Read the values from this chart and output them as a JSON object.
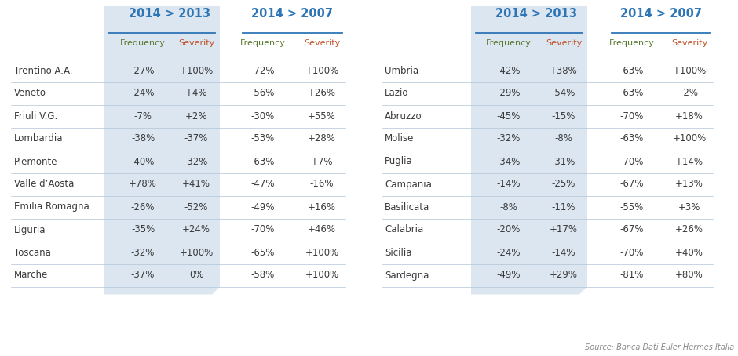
{
  "left_regions": [
    "Trentino A.A.",
    "Veneto",
    "Friuli V.G.",
    "Lombardia",
    "Piemonte",
    "Valle d’Aosta",
    "Emilia Romagna",
    "Liguria",
    "Toscana",
    "Marche"
  ],
  "left_2013_freq": [
    "-27%",
    "-24%",
    "-7%",
    "-38%",
    "-40%",
    "+78%",
    "-26%",
    "-35%",
    "-32%",
    "-37%"
  ],
  "left_2013_sev": [
    "+100%",
    "+4%",
    "+2%",
    "-37%",
    "-32%",
    "+41%",
    "-52%",
    "+24%",
    "+100%",
    "0%"
  ],
  "left_2007_freq": [
    "-72%",
    "-56%",
    "-30%",
    "-53%",
    "-63%",
    "-47%",
    "-49%",
    "-70%",
    "-65%",
    "-58%"
  ],
  "left_2007_sev": [
    "+100%",
    "+26%",
    "+55%",
    "+28%",
    "+7%",
    "-16%",
    "+16%",
    "+46%",
    "+100%",
    "+100%"
  ],
  "right_regions": [
    "Umbria",
    "Lazio",
    "Abruzzo",
    "Molise",
    "Puglia",
    "Campania",
    "Basilicata",
    "Calabria",
    "Sicilia",
    "Sardegna"
  ],
  "right_2013_freq": [
    "-42%",
    "-29%",
    "-45%",
    "-32%",
    "-34%",
    "-14%",
    "-8%",
    "-20%",
    "-24%",
    "-49%"
  ],
  "right_2013_sev": [
    "+38%",
    "-54%",
    "-15%",
    "-8%",
    "-31%",
    "-25%",
    "-11%",
    "+17%",
    "-14%",
    "+29%"
  ],
  "right_2007_freq": [
    "-63%",
    "-63%",
    "-70%",
    "-63%",
    "-70%",
    "-67%",
    "-55%",
    "-67%",
    "-70%",
    "-81%"
  ],
  "right_2007_sev": [
    "+100%",
    "-2%",
    "+18%",
    "+100%",
    "+14%",
    "+13%",
    "+3%",
    "+26%",
    "+40%",
    "+80%"
  ],
  "bg_color": "#ffffff",
  "shaded_color": "#dce6f1",
  "header_blue": "#2e75b6",
  "freq_color": "#5a7a2e",
  "sev_color": "#c0522a",
  "region_color": "#3a3a3a",
  "data_color": "#3a3a3a",
  "source_text": "Source: Banca Dati Euler Hermes Italia",
  "line_color": "#2e75b6",
  "divider_color": "#b0c4d8"
}
